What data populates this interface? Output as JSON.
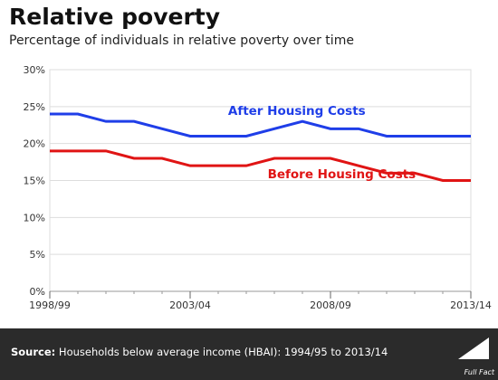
{
  "title": "Relative poverty",
  "subtitle": "Percentage of individuals in relative poverty over time",
  "footer": {
    "source_label": "Source:",
    "source_text": "Households below average income (HBAI): 1994/95 to 2013/14",
    "logo_text": "Full Fact"
  },
  "colors": {
    "after_housing": "#1f3ee8",
    "before_housing": "#e01414",
    "footer_bg": "#2b2b2b"
  },
  "chart_data": {
    "type": "line",
    "x": [
      0,
      1,
      2,
      3,
      4,
      5,
      6,
      7,
      8,
      9,
      10,
      11,
      12,
      13,
      14,
      15
    ],
    "xticks": [
      {
        "pos": 0,
        "label": "1998/99"
      },
      {
        "pos": 5,
        "label": "2003/04"
      },
      {
        "pos": 10,
        "label": "2008/09"
      },
      {
        "pos": 15,
        "label": "2013/14"
      }
    ],
    "yticks": [
      "0%",
      "5%",
      "10%",
      "15%",
      "20%",
      "25%",
      "30%"
    ],
    "ylim": [
      0,
      30
    ],
    "xlim": [
      0,
      15
    ],
    "grid": "horizontal",
    "series": [
      {
        "name": "After Housing Costs",
        "color": "#1f3ee8",
        "values": [
          24,
          24,
          23,
          23,
          22,
          21,
          21,
          21,
          22,
          23,
          22,
          22,
          21,
          21,
          21,
          21
        ],
        "label_x": 8.8,
        "label_y": 23.9
      },
      {
        "name": "Before Housing Costs",
        "color": "#e01414",
        "values": [
          19,
          19,
          19,
          18,
          18,
          17,
          17,
          17,
          18,
          18,
          18,
          17,
          16,
          16,
          15,
          15
        ],
        "label_x": 10.4,
        "label_y": 15.3
      }
    ]
  }
}
